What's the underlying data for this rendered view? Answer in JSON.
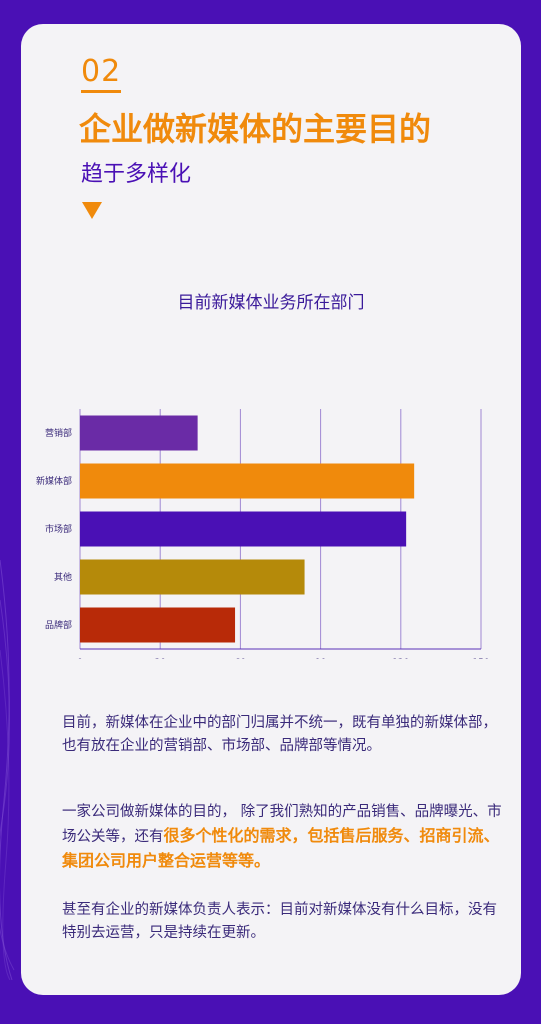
{
  "header": {
    "number": "02",
    "title": "企业做新媒体的主要目的",
    "subtitle": "趋于多样化"
  },
  "chart_data": {
    "type": "bar",
    "orientation": "horizontal",
    "title": "目前新媒体业务所在部门",
    "categories": [
      "营销部",
      "新媒体部",
      "市场部",
      "其他",
      "品牌部"
    ],
    "values": [
      44,
      125,
      122,
      84,
      58
    ],
    "colors": [
      "#6a2ba6",
      "#f08a0c",
      "#4a10b5",
      "#b58a0a",
      "#b82a08"
    ],
    "xlim": [
      0,
      150
    ],
    "xticks": [
      0,
      30,
      60,
      90,
      120,
      150
    ],
    "grid": true
  },
  "paragraphs": {
    "p1": "目前，新媒体在企业中的部门归属并不统一，既有单独的新媒体部，也有放在企业的营销部、市场部、品牌部等情况。",
    "p2_pre": "一家公司做新媒体的目的， 除了我们熟知的产品销售、品牌曝光、市场公关等，还有",
    "p2_highlight": "很多个性化的需求，包括售后服务、招商引流、集团公司用户整合运营等等。",
    "p3": "甚至有企业的新媒体负责人表示：目前对新媒体没有什么目标，没有特别去运营，只是持续在更新。"
  },
  "colors": {
    "background": "#4a10b5",
    "card": "#f4f3f6",
    "accent": "#f08a0c",
    "text": "#3a2a7a"
  }
}
